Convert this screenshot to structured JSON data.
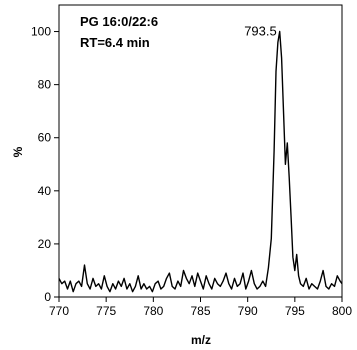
{
  "chart_data": {
    "type": "line",
    "annotation_lines": [
      "PG 16:0/22:6",
      "RT=6.4 min"
    ],
    "peak_label": "793.5",
    "peak_x": 793.4,
    "peak_y": 100,
    "xlabel": "m/z",
    "ylabel": "%",
    "xlim": [
      770,
      800
    ],
    "ylim": [
      0,
      110
    ],
    "xticks": [
      770,
      775,
      780,
      785,
      790,
      795,
      800
    ],
    "yticks": [
      0,
      20,
      40,
      60,
      80,
      100
    ],
    "grid": false,
    "series": [
      {
        "x": [
          770.0,
          770.3,
          770.6,
          770.9,
          771.2,
          771.5,
          771.8,
          772.1,
          772.4,
          772.7,
          773.0,
          773.3,
          773.6,
          773.9,
          774.2,
          774.5,
          774.8,
          775.1,
          775.4,
          775.7,
          776.0,
          776.3,
          776.6,
          776.9,
          777.2,
          777.5,
          777.8,
          778.1,
          778.4,
          778.7,
          779.0,
          779.3,
          779.6,
          779.9,
          780.2,
          780.5,
          780.8,
          781.1,
          781.4,
          781.7,
          782.0,
          782.3,
          782.6,
          782.9,
          783.2,
          783.5,
          783.8,
          784.1,
          784.4,
          784.7,
          785.0,
          785.3,
          785.6,
          785.9,
          786.2,
          786.5,
          786.8,
          787.1,
          787.4,
          787.7,
          788.0,
          788.3,
          788.6,
          788.9,
          789.2,
          789.5,
          789.8,
          790.1,
          790.4,
          790.7,
          791.0,
          791.3,
          791.6,
          791.9,
          792.2,
          792.5,
          792.8,
          793.0,
          793.2,
          793.4,
          793.6,
          793.8,
          794.0,
          794.2,
          794.4,
          794.6,
          794.8,
          795.0,
          795.2,
          795.4,
          795.6,
          795.9,
          796.2,
          796.5,
          796.8,
          797.1,
          797.4,
          797.7,
          798.0,
          798.3,
          798.6,
          798.9,
          799.2,
          799.5,
          799.8,
          800.0
        ],
        "y": [
          7,
          5,
          6,
          3,
          6,
          2,
          5,
          6,
          4,
          12,
          5,
          3,
          7,
          4,
          5,
          3,
          8,
          4,
          2,
          5,
          3,
          6,
          4,
          7,
          3,
          5,
          2,
          4,
          8,
          3,
          5,
          3,
          4,
          2,
          5,
          6,
          3,
          4,
          7,
          9,
          4,
          3,
          6,
          4,
          10,
          7,
          5,
          8,
          4,
          9,
          6,
          3,
          8,
          5,
          3,
          7,
          5,
          4,
          6,
          9,
          5,
          3,
          7,
          4,
          5,
          9,
          3,
          6,
          10,
          5,
          3,
          4,
          6,
          4,
          11,
          22,
          55,
          85,
          96,
          100,
          90,
          70,
          50,
          58,
          45,
          30,
          15,
          10,
          16,
          8,
          5,
          4,
          7,
          3,
          5,
          4,
          3,
          6,
          10,
          4,
          3,
          5,
          4,
          8,
          6,
          5
        ]
      }
    ]
  }
}
